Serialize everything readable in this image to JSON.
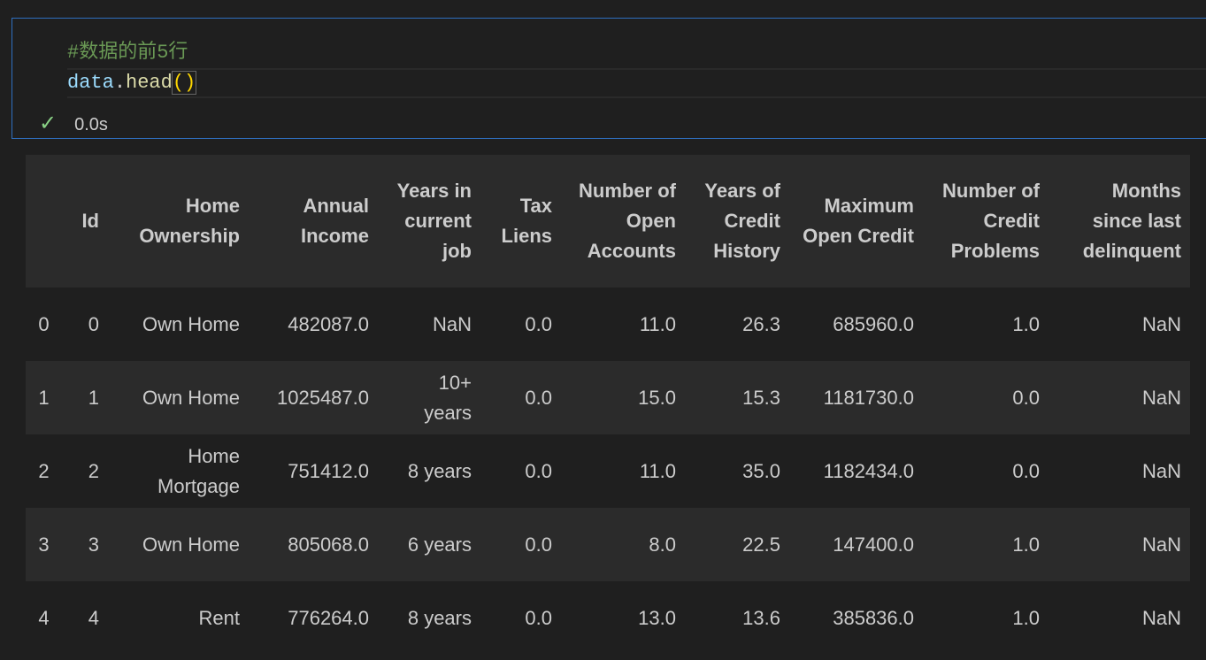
{
  "cell": {
    "code": {
      "comment": "#数据的前5行",
      "tokens": [
        "data",
        ".",
        "head",
        "()"
      ]
    },
    "status": {
      "check": "✓",
      "time": "0.0s"
    }
  },
  "table": {
    "columns": [
      "",
      "Id",
      "Home Ownership",
      "Annual Income",
      "Years in current job",
      "Tax Liens",
      "Number of Open Accounts",
      "Years of Credit History",
      "Maximum Open Credit",
      "Number of Credit Problems",
      "Months since last delinquent"
    ],
    "rows": [
      [
        "0",
        "0",
        "Own Home",
        "482087.0",
        "NaN",
        "0.0",
        "11.0",
        "26.3",
        "685960.0",
        "1.0",
        "NaN"
      ],
      [
        "1",
        "1",
        "Own Home",
        "1025487.0",
        "10+ years",
        "0.0",
        "15.0",
        "15.3",
        "1181730.0",
        "0.0",
        "NaN"
      ],
      [
        "2",
        "2",
        "Home Mortgage",
        "751412.0",
        "8 years",
        "0.0",
        "11.0",
        "35.0",
        "1182434.0",
        "0.0",
        "NaN"
      ],
      [
        "3",
        "3",
        "Own Home",
        "805068.0",
        "6 years",
        "0.0",
        "8.0",
        "22.5",
        "147400.0",
        "1.0",
        "NaN"
      ],
      [
        "4",
        "4",
        "Rent",
        "776264.0",
        "8 years",
        "0.0",
        "13.0",
        "13.6",
        "385836.0",
        "1.0",
        "NaN"
      ]
    ]
  }
}
